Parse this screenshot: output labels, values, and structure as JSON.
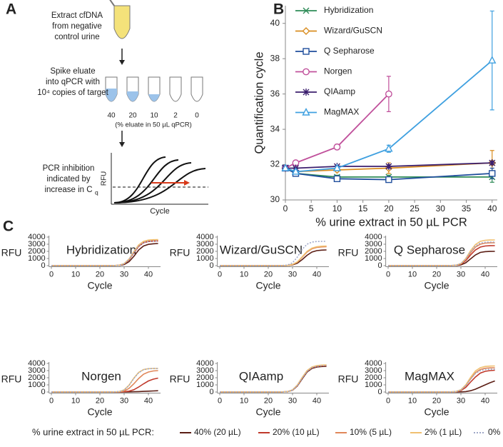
{
  "panel_labels": [
    "A",
    "B",
    "C"
  ],
  "diagram": {
    "step1": [
      "Extract cfDNA",
      "from negative",
      "control urine"
    ],
    "step2": [
      "Spike eluate",
      "into qPCR with",
      "10⁴ copies of target"
    ],
    "tube_labels": [
      "40",
      "20",
      "10",
      "2",
      "0"
    ],
    "tube_caption": "(% eluate in 50 µL qPCR)",
    "step3": [
      "PCR inhibition",
      "indicated by",
      "increase in C"
    ],
    "step3_subscript": "q",
    "inset_ylabel": "RFU",
    "inset_xlabel": "Cycle"
  },
  "chart_data": [
    {
      "type": "line",
      "xlabel": "% urine extract in 50 µL PCR",
      "ylabel": "Quantification cycle",
      "x": [
        0,
        2,
        10,
        20,
        40
      ],
      "xlim": [
        0,
        41
      ],
      "xticks": [
        0,
        5,
        10,
        15,
        20,
        25,
        30,
        35,
        40
      ],
      "ylim": [
        30,
        41
      ],
      "yticks": [
        30,
        32,
        34,
        36,
        38,
        40
      ],
      "legend": "upper left",
      "series": [
        {
          "name": "Hybridization",
          "color": "#2e8b57",
          "marker": "x",
          "values": [
            31.8,
            31.5,
            31.3,
            31.3,
            31.3
          ],
          "errors": [
            0.05,
            0.1,
            0.1,
            0.1,
            0.3
          ]
        },
        {
          "name": "Wizard/GuSCN",
          "color": "#d98c1f",
          "marker": "diamond",
          "values": [
            31.8,
            31.6,
            31.7,
            31.8,
            32.1
          ],
          "errors": [
            0.05,
            0.1,
            0.1,
            0.3,
            0.7
          ]
        },
        {
          "name": "Q Sepharose",
          "color": "#1f4e9c",
          "marker": "square",
          "values": [
            31.8,
            31.5,
            31.2,
            31.15,
            31.5
          ],
          "errors": [
            0.05,
            0.1,
            0.1,
            0.1,
            0.3
          ]
        },
        {
          "name": "Norgen",
          "color": "#c0509b",
          "marker": "circle",
          "values": [
            31.8,
            32.1,
            33.0,
            36.0,
            null
          ],
          "errors": [
            0.05,
            0.1,
            0.15,
            1.0,
            null
          ]
        },
        {
          "name": "QIAamp",
          "color": "#3b1f6e",
          "marker": "asterisk",
          "values": [
            31.8,
            31.8,
            31.9,
            31.9,
            32.1
          ],
          "errors": [
            0.05,
            0.05,
            0.05,
            0.1,
            0.1
          ]
        },
        {
          "name": "MagMAX",
          "color": "#3fa0e0",
          "marker": "triangle",
          "values": [
            31.8,
            31.6,
            31.8,
            32.9,
            37.9
          ],
          "errors": [
            0.05,
            0.1,
            0.1,
            0.2,
            2.8
          ]
        }
      ]
    },
    {
      "type": "small-multiples",
      "xlabel": "Cycle",
      "ylabel": "RFU",
      "x": [
        0,
        10,
        20,
        25,
        28,
        30,
        32,
        34,
        36,
        38,
        40,
        42,
        44
      ],
      "xlim": [
        -1,
        45
      ],
      "xticks": [
        0,
        10,
        20,
        30,
        40
      ],
      "ylim": [
        -150,
        4200
      ],
      "yticks": [
        0,
        1000,
        2000,
        3000,
        4000
      ],
      "legend_title": "% urine extract in 50 µL PCR:",
      "series": [
        {
          "name": "40% (20 µL)",
          "color": "#5b1d14",
          "dash": false
        },
        {
          "name": "20% (10 µL)",
          "color": "#c0392b",
          "dash": false
        },
        {
          "name": "10% (5 µL)",
          "color": "#e0875a",
          "dash": false
        },
        {
          "name": "2% (1 µL)",
          "color": "#f0c070",
          "dash": false
        },
        {
          "name": "0%",
          "color": "#a0a8c8",
          "dash": true
        }
      ],
      "panels": [
        {
          "title": "Hybridization",
          "values": [
            [
              0,
              0,
              0,
              0,
              30,
              150,
              550,
              1300,
              2200,
              2750,
              2980,
              3060,
              3100
            ],
            [
              0,
              0,
              0,
              0,
              50,
              250,
              800,
              1800,
              2700,
              3200,
              3380,
              3430,
              3450
            ],
            [
              0,
              0,
              0,
              0,
              60,
              280,
              900,
              1950,
              2850,
              3350,
              3530,
              3580,
              3600
            ],
            [
              0,
              0,
              0,
              0,
              60,
              280,
              900,
              1950,
              2900,
              3400,
              3580,
              3630,
              3650
            ],
            [
              0,
              0,
              0,
              0,
              50,
              260,
              850,
              1850,
              2750,
              3220,
              3390,
              3430,
              3450
            ]
          ]
        },
        {
          "title": "Wizard/GuSCN",
          "values": [
            [
              0,
              0,
              0,
              0,
              20,
              100,
              350,
              850,
              1450,
              1900,
              2100,
              2170,
              2200
            ],
            [
              0,
              0,
              0,
              0,
              30,
              150,
              500,
              1200,
              1950,
              2400,
              2600,
              2670,
              2700
            ],
            [
              0,
              0,
              0,
              0,
              30,
              150,
              500,
              1200,
              1900,
              2350,
              2550,
              2620,
              2650
            ],
            [
              0,
              0,
              0,
              0,
              30,
              160,
              520,
              1250,
              2000,
              2450,
              2650,
              2720,
              2750
            ],
            [
              0,
              0,
              0,
              0,
              80,
              400,
              1200,
              2300,
              3000,
              3300,
              3380,
              3400,
              3400
            ]
          ]
        },
        {
          "title": "Q Sepharose",
          "values": [
            [
              0,
              0,
              0,
              0,
              20,
              100,
              400,
              950,
              1500,
              1850,
              1960,
              1990,
              2000
            ],
            [
              0,
              0,
              0,
              0,
              40,
              200,
              700,
              1500,
              2200,
              2600,
              2750,
              2790,
              2800
            ],
            [
              0,
              0,
              0,
              0,
              50,
              250,
              850,
              1800,
              2600,
              3000,
              3150,
              3190,
              3200
            ],
            [
              0,
              0,
              0,
              0,
              60,
              300,
              1000,
              2100,
              2950,
              3400,
              3550,
              3590,
              3600
            ],
            [
              0,
              0,
              0,
              0,
              60,
              300,
              950,
              1950,
              2750,
              3150,
              3270,
              3300,
              3300
            ]
          ]
        },
        {
          "title": "Norgen",
          "values": [
            [
              0,
              0,
              0,
              0,
              0,
              10,
              20,
              40,
              60,
              90,
              120,
              150,
              180
            ],
            [
              0,
              0,
              0,
              0,
              10,
              40,
              120,
              320,
              700,
              1150,
              1550,
              1800,
              1950
            ],
            [
              0,
              0,
              0,
              0,
              30,
              150,
              500,
              1150,
              1900,
              2500,
              2800,
              2950,
              3000
            ],
            [
              0,
              0,
              0,
              0,
              60,
              300,
              950,
              1950,
              2750,
              3150,
              3270,
              3300,
              3300
            ],
            [
              0,
              0,
              0,
              0,
              60,
              280,
              900,
              1900,
              2700,
              3120,
              3260,
              3290,
              3300
            ]
          ]
        },
        {
          "title": "QIAamp",
          "values": [
            [
              0,
              0,
              0,
              0,
              50,
              250,
              850,
              1850,
              2800,
              3300,
              3500,
              3570,
              3600
            ],
            [
              0,
              0,
              0,
              0,
              60,
              280,
              900,
              1950,
              2900,
              3400,
              3600,
              3670,
              3700
            ],
            [
              0,
              0,
              0,
              0,
              60,
              290,
              950,
              2000,
              2950,
              3450,
              3650,
              3720,
              3750
            ],
            [
              0,
              0,
              0,
              0,
              70,
              300,
              980,
              2050,
              3000,
              3500,
              3700,
              3770,
              3800
            ],
            [
              0,
              0,
              0,
              0,
              60,
              280,
              920,
              1950,
              2900,
              3400,
              3600,
              3670,
              3700
            ]
          ]
        },
        {
          "title": "MagMAX",
          "values": [
            [
              0,
              0,
              0,
              0,
              0,
              20,
              60,
              180,
              400,
              700,
              1000,
              1300,
              1550
            ],
            [
              0,
              0,
              0,
              0,
              40,
              200,
              650,
              1400,
              2100,
              2650,
              2900,
              3000,
              3050
            ],
            [
              0,
              0,
              0,
              0,
              60,
              280,
              900,
              1850,
              2700,
              3150,
              3330,
              3380,
              3400
            ],
            [
              0,
              0,
              0,
              0,
              70,
              320,
              1000,
              2050,
              2950,
              3400,
              3580,
              3630,
              3650
            ],
            [
              0,
              0,
              0,
              0,
              60,
              280,
              880,
              1800,
              2600,
              3000,
              3150,
              3190,
              3200
            ]
          ]
        }
      ]
    }
  ]
}
